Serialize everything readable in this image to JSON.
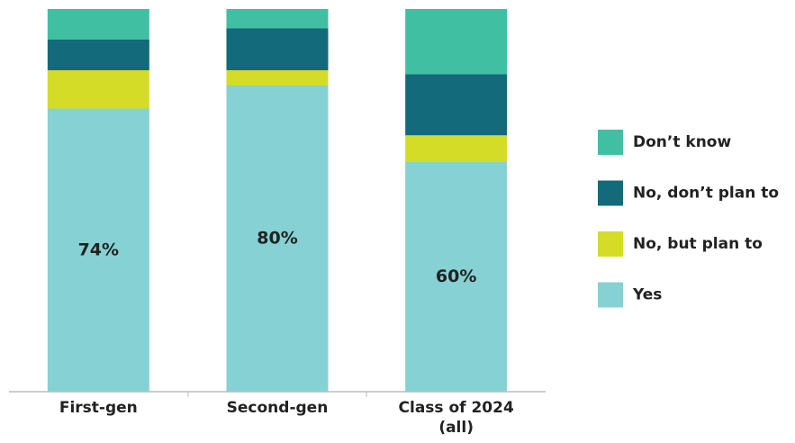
{
  "chart_data": {
    "type": "bar",
    "stacked": true,
    "categories": [
      "First-gen",
      "Second-gen",
      "Class of 2024 (all)"
    ],
    "series": [
      {
        "name": "Yes",
        "color": "#86d1d3",
        "values": [
          74,
          80,
          60
        ],
        "value_labels": [
          "74%",
          "80%",
          "60%"
        ]
      },
      {
        "name": "No, but plan to",
        "color": "#d4dc27",
        "values": [
          10,
          4,
          7
        ]
      },
      {
        "name": "No, don’t plan to",
        "color": "#126a7a",
        "values": [
          8,
          11,
          16
        ]
      },
      {
        "name": "Don’t know",
        "color": "#40bfa2",
        "values": [
          8,
          5,
          17
        ]
      }
    ],
    "ylim": [
      0,
      100
    ]
  }
}
